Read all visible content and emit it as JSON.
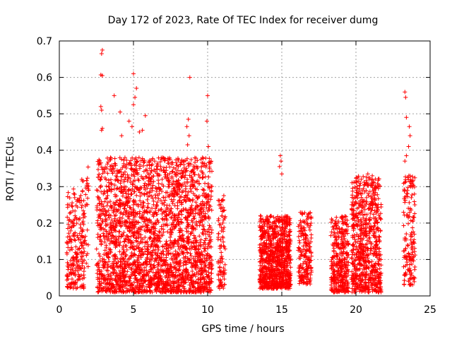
{
  "chart_data": {
    "type": "scatter",
    "title": "Day 172 of 2023, Rate Of TEC Index for receiver dumg",
    "xlabel": "GPS time / hours",
    "ylabel": "ROTI / TECUs",
    "xlim": [
      0,
      25
    ],
    "ylim": [
      0,
      0.7
    ],
    "xticks": [
      "0",
      "5",
      "10",
      "15",
      "20",
      "25"
    ],
    "yticks": [
      "0",
      "0.1",
      "0.2",
      "0.3",
      "0.4",
      "0.5",
      "0.6",
      "0.7"
    ],
    "grid": true,
    "marker": "+",
    "color": "#ff0000",
    "clusters": [
      {
        "x_range": [
          0.5,
          1.7
        ],
        "y_range": [
          0.02,
          0.3
        ],
        "density": 220
      },
      {
        "x_range": [
          1.5,
          2.0
        ],
        "y_range": [
          0.08,
          0.36
        ],
        "density": 40
      },
      {
        "x_range": [
          2.5,
          10.3
        ],
        "y_range": [
          0.01,
          0.38
        ],
        "density": 2600
      },
      {
        "x_range": [
          10.7,
          11.2
        ],
        "y_range": [
          0.02,
          0.28
        ],
        "density": 90
      },
      {
        "x_range": [
          13.5,
          15.6
        ],
        "y_range": [
          0.02,
          0.22
        ],
        "density": 900
      },
      {
        "x_range": [
          16.1,
          17.0
        ],
        "y_range": [
          0.03,
          0.23
        ],
        "density": 200
      },
      {
        "x_range": [
          18.3,
          19.5
        ],
        "y_range": [
          0.01,
          0.22
        ],
        "density": 350
      },
      {
        "x_range": [
          19.7,
          21.7
        ],
        "y_range": [
          0.01,
          0.33
        ],
        "density": 700
      },
      {
        "x_range": [
          23.2,
          24.0
        ],
        "y_range": [
          0.03,
          0.33
        ],
        "density": 160
      }
    ],
    "outliers": [
      {
        "x": 2.9,
        "y": 0.675
      },
      {
        "x": 2.85,
        "y": 0.665
      },
      {
        "x": 2.8,
        "y": 0.607
      },
      {
        "x": 2.9,
        "y": 0.605
      },
      {
        "x": 2.8,
        "y": 0.52
      },
      {
        "x": 2.85,
        "y": 0.51
      },
      {
        "x": 2.9,
        "y": 0.46
      },
      {
        "x": 2.85,
        "y": 0.455
      },
      {
        "x": 5.0,
        "y": 0.61
      },
      {
        "x": 5.2,
        "y": 0.57
      },
      {
        "x": 5.1,
        "y": 0.545
      },
      {
        "x": 3.7,
        "y": 0.55
      },
      {
        "x": 4.1,
        "y": 0.505
      },
      {
        "x": 4.7,
        "y": 0.48
      },
      {
        "x": 4.9,
        "y": 0.465
      },
      {
        "x": 5.8,
        "y": 0.495
      },
      {
        "x": 5.6,
        "y": 0.455
      },
      {
        "x": 5.4,
        "y": 0.45
      },
      {
        "x": 4.2,
        "y": 0.44
      },
      {
        "x": 5.0,
        "y": 0.525
      },
      {
        "x": 8.8,
        "y": 0.6
      },
      {
        "x": 8.7,
        "y": 0.485
      },
      {
        "x": 8.6,
        "y": 0.465
      },
      {
        "x": 8.75,
        "y": 0.44
      },
      {
        "x": 8.65,
        "y": 0.415
      },
      {
        "x": 10.0,
        "y": 0.55
      },
      {
        "x": 9.95,
        "y": 0.48
      },
      {
        "x": 10.05,
        "y": 0.41
      },
      {
        "x": 14.9,
        "y": 0.385
      },
      {
        "x": 14.95,
        "y": 0.37
      },
      {
        "x": 14.85,
        "y": 0.355
      },
      {
        "x": 15.0,
        "y": 0.335
      },
      {
        "x": 23.3,
        "y": 0.56
      },
      {
        "x": 23.35,
        "y": 0.545
      },
      {
        "x": 23.4,
        "y": 0.49
      },
      {
        "x": 23.6,
        "y": 0.465
      },
      {
        "x": 23.65,
        "y": 0.44
      },
      {
        "x": 23.55,
        "y": 0.41
      },
      {
        "x": 23.4,
        "y": 0.385
      },
      {
        "x": 23.3,
        "y": 0.37
      },
      {
        "x": 20.8,
        "y": 0.335
      },
      {
        "x": 21.1,
        "y": 0.33
      },
      {
        "x": 20.9,
        "y": 0.32
      },
      {
        "x": 21.0,
        "y": 0.305
      }
    ]
  }
}
